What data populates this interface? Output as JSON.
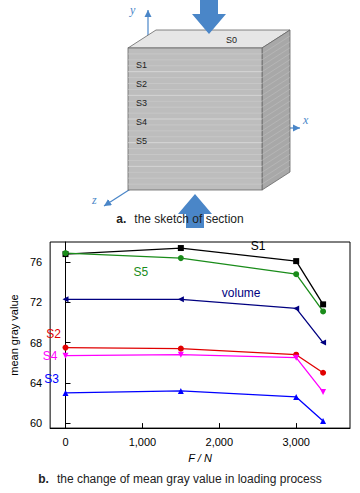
{
  "diagram": {
    "sections": [
      "S0",
      "S1",
      "S2",
      "S3",
      "S4",
      "S5"
    ],
    "axes": [
      "x",
      "y",
      "z"
    ],
    "caption": {
      "letter": "a.",
      "text": "the sketch of section"
    }
  },
  "chart_data": {
    "type": "line",
    "caption": {
      "letter": "b.",
      "text": "the change of mean gray value in loading process"
    },
    "x_label": "F / N",
    "y_label": "mean gray value",
    "x": [
      0,
      1500,
      3000,
      3350
    ],
    "series": [
      {
        "name": "S1",
        "color": "#000000",
        "marker": "square",
        "values": [
          76.8,
          77.4,
          76.1,
          71.8
        ]
      },
      {
        "name": "S5",
        "color": "#1a8c1a",
        "marker": "circle",
        "values": [
          76.9,
          76.4,
          74.8,
          71.1
        ]
      },
      {
        "name": "volume",
        "color": "#000080",
        "marker": "triangle-left",
        "values": [
          72.3,
          72.3,
          71.4,
          68.0
        ]
      },
      {
        "name": "S2",
        "color": "#e00000",
        "marker": "circle",
        "values": [
          67.5,
          67.4,
          66.8,
          65.0
        ]
      },
      {
        "name": "S4",
        "color": "#ff00ff",
        "marker": "triangle-down",
        "values": [
          66.7,
          66.8,
          66.5,
          63.1
        ]
      },
      {
        "name": "S3",
        "color": "#0000ff",
        "marker": "triangle",
        "values": [
          63.0,
          63.2,
          62.6,
          60.2
        ]
      }
    ],
    "xlim": [
      -200,
      3700
    ],
    "xticks": [
      0,
      1000,
      2000,
      3000
    ],
    "ylim": [
      59.5,
      78
    ],
    "yticks": [
      60,
      64,
      68,
      72,
      76
    ],
    "grid": false
  }
}
